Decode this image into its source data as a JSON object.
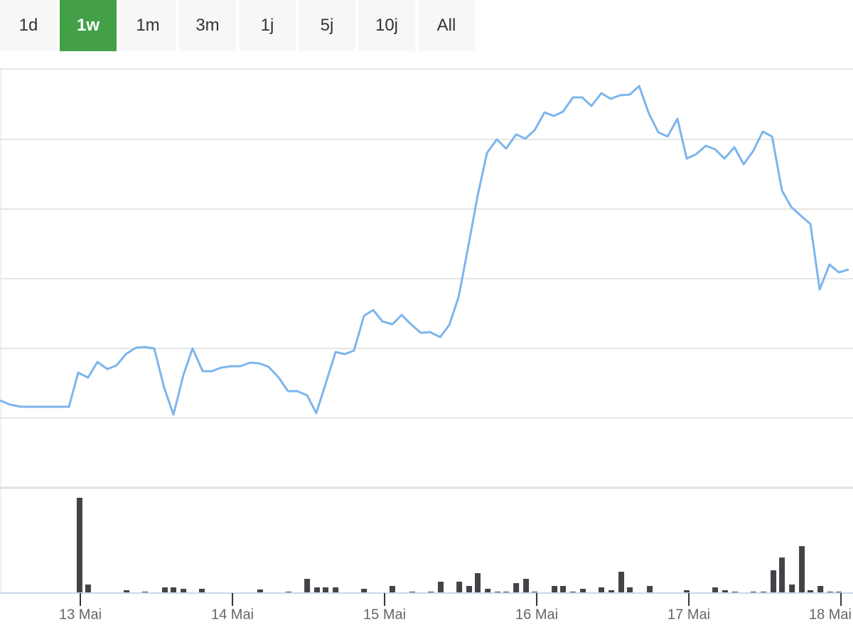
{
  "range_buttons": {
    "options": [
      "1d",
      "1w",
      "1m",
      "3m",
      "1j",
      "5j",
      "10j",
      "All"
    ],
    "selected": 1
  },
  "chart_data": [
    {
      "type": "line",
      "color": "#7cb5ec",
      "x": [
        12.472,
        12.537,
        12.612,
        12.678,
        12.738,
        12.799,
        12.865,
        12.925,
        12.986,
        13.051,
        13.112,
        13.178,
        13.238,
        13.299,
        13.365,
        13.425,
        13.486,
        13.551,
        13.612,
        13.678,
        13.738,
        13.804,
        13.865,
        13.925,
        13.991,
        14.051,
        14.117,
        14.178,
        14.238,
        14.304,
        14.365,
        14.425,
        14.491,
        14.551,
        14.612,
        14.678,
        14.738,
        14.799,
        14.865,
        14.925,
        14.986,
        15.051,
        15.112,
        15.173,
        15.238,
        15.299,
        15.365,
        15.425,
        15.486,
        15.547,
        15.612,
        15.673,
        15.738,
        15.799,
        15.865,
        15.925,
        15.986,
        16.051,
        16.112,
        16.173,
        16.238,
        16.299,
        16.36,
        16.425,
        16.486,
        16.547,
        16.612,
        16.673,
        16.738,
        16.799,
        16.86,
        16.925,
        16.986,
        17.047,
        17.112,
        17.173,
        17.234,
        17.299,
        17.36,
        17.421,
        17.486,
        17.547,
        17.612,
        17.673,
        17.734,
        17.799,
        17.86,
        17.925,
        17.986,
        18.051
      ],
      "values": [
        123,
        117,
        114,
        114,
        114,
        114,
        114,
        114,
        162,
        155,
        177,
        167,
        172,
        188,
        197,
        198,
        196,
        141,
        103,
        159,
        196,
        164,
        164,
        169,
        171,
        171,
        176,
        175,
        170,
        155,
        136,
        136,
        130,
        105,
        146,
        191,
        188,
        193,
        242,
        250,
        234,
        230,
        243,
        230,
        218,
        219,
        212,
        229,
        268,
        336,
        411,
        471,
        490,
        477,
        497,
        491,
        503,
        528,
        523,
        529,
        549,
        549,
        537,
        555,
        547,
        552,
        553,
        565,
        526,
        500,
        494,
        519,
        463,
        469,
        481,
        476,
        463,
        479,
        455,
        473,
        501,
        494,
        418,
        395,
        383,
        371,
        279,
        314,
        303,
        307
      ],
      "xlim": [
        12.472,
        18.079
      ],
      "ylim": [
        0,
        589
      ],
      "yticks": [
        98,
        196,
        294,
        392,
        490,
        589
      ],
      "grid": true
    },
    {
      "type": "bar",
      "color": "#434348",
      "x": [
        12.995,
        13.051,
        13.304,
        13.425,
        13.556,
        13.612,
        13.678,
        13.799,
        14.182,
        14.369,
        14.491,
        14.556,
        14.612,
        14.678,
        14.865,
        15.051,
        15.182,
        15.304,
        15.369,
        15.491,
        15.556,
        15.612,
        15.678,
        15.743,
        15.799,
        15.865,
        15.93,
        15.986,
        16.117,
        16.173,
        16.238,
        16.304,
        16.425,
        16.491,
        16.556,
        16.612,
        16.743,
        16.986,
        17.173,
        17.238,
        17.304,
        17.425,
        17.491,
        17.556,
        17.612,
        17.678,
        17.743,
        17.799,
        17.865,
        17.93,
        17.986
      ],
      "values": [
        134,
        12,
        4,
        2,
        8,
        8,
        6,
        6,
        5,
        2,
        20,
        8,
        8,
        8,
        6,
        10,
        2,
        2,
        16,
        16,
        10,
        28,
        6,
        2,
        2,
        14,
        20,
        2,
        10,
        10,
        2,
        6,
        8,
        4,
        30,
        8,
        10,
        4,
        8,
        4,
        2,
        2,
        2,
        32,
        50,
        12,
        66,
        4,
        10,
        2,
        2
      ],
      "xlim": [
        12.472,
        18.079
      ],
      "ylim": [
        0,
        144
      ],
      "xticks": [
        {
          "value": 13,
          "label": "13 Mai"
        },
        {
          "value": 14,
          "label": "14 Mai"
        },
        {
          "value": 15,
          "label": "15 Mai"
        },
        {
          "value": 16,
          "label": "16 Mai"
        },
        {
          "value": 17,
          "label": "17 Mai"
        },
        {
          "value": 18,
          "label": "18 Mai"
        }
      ]
    }
  ]
}
